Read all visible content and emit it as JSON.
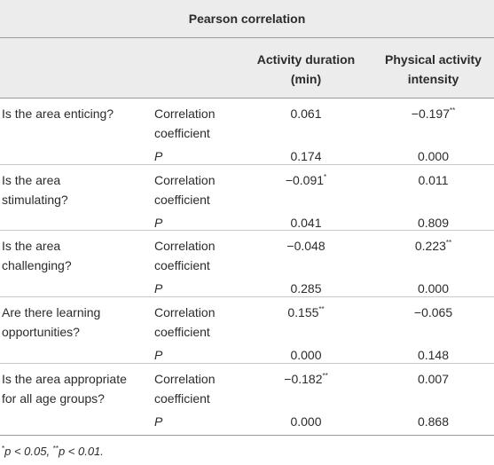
{
  "header": {
    "group_title": "Pearson correlation",
    "col1": [
      "Activity duration",
      "(min)"
    ],
    "col2": [
      "Physical activity",
      "intensity"
    ]
  },
  "rows": [
    {
      "question": [
        "Is the area enticing?"
      ],
      "coef_label": [
        "Correlation",
        "coefficient"
      ],
      "coef": {
        "v1": "0.061",
        "s1": "",
        "v2": "−0.197",
        "s2": "**"
      },
      "p_label": "P",
      "p": {
        "v1": "0.174",
        "v2": "0.000"
      }
    },
    {
      "question": [
        "Is the area",
        "stimulating?"
      ],
      "coef_label": [
        "Correlation",
        "coefficient"
      ],
      "coef": {
        "v1": "−0.091",
        "s1": "*",
        "v2": "0.011",
        "s2": ""
      },
      "p_label": "P",
      "p": {
        "v1": "0.041",
        "v2": "0.809"
      }
    },
    {
      "question": [
        "Is the area",
        "challenging?"
      ],
      "coef_label": [
        "Correlation",
        "coefficient"
      ],
      "coef": {
        "v1": "−0.048",
        "s1": "",
        "v2": "0.223",
        "s2": "**"
      },
      "p_label": "P",
      "p": {
        "v1": "0.285",
        "v2": "0.000"
      }
    },
    {
      "question": [
        "Are there learning",
        "opportunities?"
      ],
      "coef_label": [
        "Correlation",
        "coefficient"
      ],
      "coef": {
        "v1": "0.155",
        "s1": "**",
        "v2": "−0.065",
        "s2": ""
      },
      "p_label": "P",
      "p": {
        "v1": "0.000",
        "v2": "0.148"
      }
    },
    {
      "question": [
        "Is the area appropriate",
        "for all age groups?"
      ],
      "coef_label": [
        "Correlation",
        "coefficient"
      ],
      "coef": {
        "v1": "−0.182",
        "s1": "**",
        "v2": "0.007",
        "s2": ""
      },
      "p_label": "P",
      "p": {
        "v1": "0.000",
        "v2": "0.868"
      }
    }
  ],
  "footnote": {
    "sym1": "*",
    "text1": "p < 0.05, ",
    "sym2": "**",
    "text2": "p < 0.01."
  }
}
